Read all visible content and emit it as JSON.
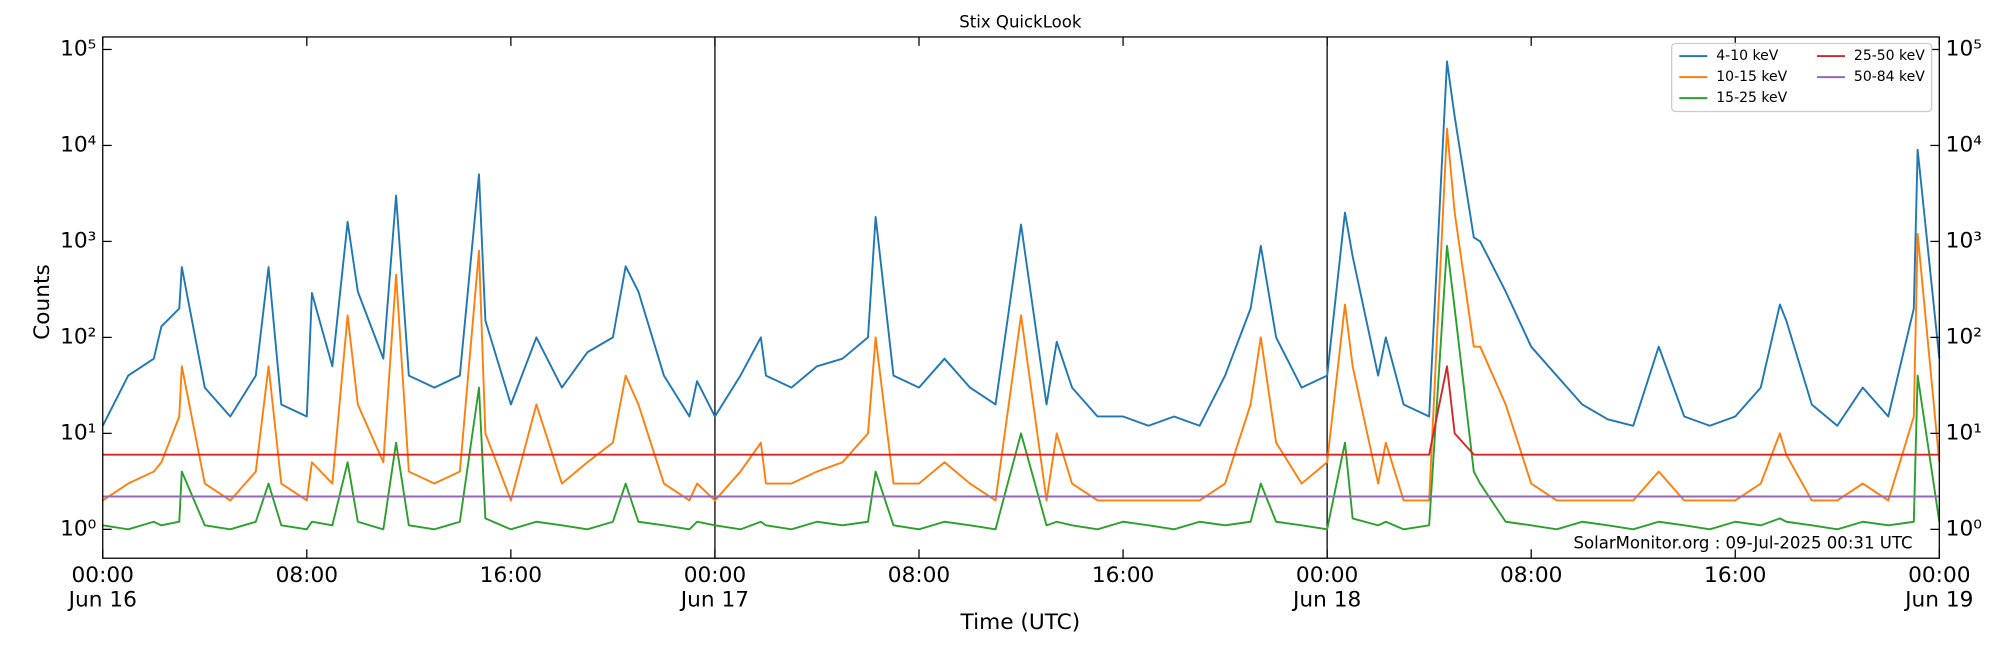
{
  "chart_data": {
    "type": "line",
    "title": "Stix QuickLook",
    "x_label": "Time (UTC)",
    "y_label": "Counts",
    "annotation": "SolarMonitor.org : 09-Jul-2025 00:31 UTC",
    "log_y": true,
    "legend_position": "upper right",
    "legend_columns": 2,
    "xlim": [
      0,
      72
    ],
    "xticks": [
      {
        "value": 0,
        "label": "00:00\nJun 16"
      },
      {
        "value": 8,
        "label": "08:00"
      },
      {
        "value": 16,
        "label": "16:00"
      },
      {
        "value": 24,
        "label": "00:00\nJun 17"
      },
      {
        "value": 32,
        "label": "08:00"
      },
      {
        "value": 40,
        "label": "16:00"
      },
      {
        "value": 48,
        "label": "00:00\nJun 18"
      },
      {
        "value": 56,
        "label": "08:00"
      },
      {
        "value": 64,
        "label": "16:00"
      },
      {
        "value": 72,
        "label": "00:00\nJun 19"
      }
    ],
    "day_lines": [
      24,
      48
    ],
    "ylim": [
      0.5,
      135000
    ],
    "yticks": [
      {
        "value": 1,
        "label": "10⁰"
      },
      {
        "value": 10,
        "label": "10¹"
      },
      {
        "value": 100,
        "label": "10²"
      },
      {
        "value": 1000,
        "label": "10³"
      },
      {
        "value": 10000,
        "label": "10⁴"
      },
      {
        "value": 100000,
        "label": "10⁵"
      }
    ],
    "x": [
      0,
      1,
      2,
      2.3,
      3,
      3.1,
      4,
      5,
      6,
      6.5,
      7,
      8,
      8.2,
      9,
      9.6,
      10,
      11,
      11.5,
      12,
      13,
      14,
      14.75,
      15,
      16,
      17,
      18,
      19,
      20,
      20.5,
      21,
      22,
      23,
      23.3,
      24,
      25,
      25.8,
      26,
      27,
      28,
      29,
      30,
      30.3,
      31,
      32,
      33,
      34,
      35,
      36,
      37,
      37.4,
      38,
      39,
      40,
      41,
      42,
      43,
      44,
      45,
      45.4,
      46,
      47,
      48,
      48.7,
      49,
      50,
      50.3,
      51,
      52,
      52.7,
      53,
      53.75,
      54,
      55,
      56,
      57,
      58,
      59,
      60,
      61,
      62,
      63,
      64,
      65,
      65.75,
      66,
      67,
      68,
      69,
      70,
      71,
      71.15,
      72
    ],
    "series": [
      {
        "name": "4-10 keV",
        "color": "#1f77b4",
        "values": [
          12,
          40,
          60,
          130,
          200,
          540,
          30,
          15,
          40,
          540,
          20,
          15,
          290,
          50,
          1600,
          300,
          60,
          3000,
          40,
          30,
          40,
          5000,
          150,
          20,
          100,
          30,
          70,
          100,
          550,
          300,
          40,
          15,
          35,
          15,
          40,
          100,
          40,
          30,
          50,
          60,
          100,
          1800,
          40,
          30,
          60,
          30,
          20,
          1500,
          20,
          90,
          30,
          15,
          15,
          12,
          15,
          12,
          40,
          200,
          900,
          100,
          30,
          40,
          2000,
          700,
          40,
          100,
          20,
          15,
          75000,
          20000,
          1100,
          1000,
          300,
          80,
          40,
          20,
          14,
          12,
          80,
          15,
          12,
          15,
          30,
          220,
          150,
          20,
          12,
          30,
          15,
          200,
          9000,
          60
        ]
      },
      {
        "name": "10-15 keV",
        "color": "#ff7f0e",
        "values": [
          2,
          3,
          4,
          5,
          15,
          50,
          3,
          2,
          4,
          50,
          3,
          2,
          5,
          3,
          170,
          20,
          5,
          450,
          4,
          3,
          4,
          800,
          10,
          2,
          20,
          3,
          5,
          8,
          40,
          20,
          3,
          2,
          3,
          2,
          4,
          8,
          3,
          3,
          4,
          5,
          10,
          100,
          3,
          3,
          5,
          3,
          2,
          170,
          2,
          10,
          3,
          2,
          2,
          2,
          2,
          2,
          3,
          20,
          100,
          8,
          3,
          5,
          220,
          50,
          3,
          8,
          2,
          2,
          15000,
          2000,
          80,
          80,
          20,
          3,
          2,
          2,
          2,
          2,
          4,
          2,
          2,
          2,
          3,
          10,
          6,
          2,
          2,
          3,
          2,
          15,
          1200,
          5
        ]
      },
      {
        "name": "15-25 keV",
        "color": "#2ca02c",
        "values": [
          1.1,
          1.0,
          1.2,
          1.1,
          1.2,
          4,
          1.1,
          1.0,
          1.2,
          3,
          1.1,
          1.0,
          1.2,
          1.1,
          5,
          1.2,
          1.0,
          8,
          1.1,
          1.0,
          1.2,
          30,
          1.3,
          1.0,
          1.2,
          1.1,
          1.0,
          1.2,
          3,
          1.2,
          1.1,
          1.0,
          1.2,
          1.1,
          1.0,
          1.2,
          1.1,
          1.0,
          1.2,
          1.1,
          1.2,
          4,
          1.1,
          1.0,
          1.2,
          1.1,
          1.0,
          10,
          1.1,
          1.2,
          1.1,
          1.0,
          1.2,
          1.1,
          1.0,
          1.2,
          1.1,
          1.2,
          3,
          1.2,
          1.1,
          1.0,
          8,
          1.3,
          1.1,
          1.2,
          1.0,
          1.1,
          900,
          200,
          4,
          3,
          1.2,
          1.1,
          1.0,
          1.2,
          1.1,
          1.0,
          1.2,
          1.1,
          1.0,
          1.2,
          1.1,
          1.3,
          1.2,
          1.1,
          1.0,
          1.2,
          1.1,
          1.2,
          40,
          1.2
        ]
      },
      {
        "name": "25-50 keV",
        "color": "#d62728",
        "values": [
          6,
          6,
          6,
          6,
          6,
          6,
          6,
          6,
          6,
          6,
          6,
          6,
          6,
          6,
          6,
          6,
          6,
          6,
          6,
          6,
          6,
          6,
          6,
          6,
          6,
          6,
          6,
          6,
          6,
          6,
          6,
          6,
          6,
          6,
          6,
          6,
          6,
          6,
          6,
          6,
          6,
          6,
          6,
          6,
          6,
          6,
          6,
          6,
          6,
          6,
          6,
          6,
          6,
          6,
          6,
          6,
          6,
          6,
          6,
          6,
          6,
          6,
          6,
          6,
          6,
          6,
          6,
          6,
          50,
          10,
          6,
          6,
          6,
          6,
          6,
          6,
          6,
          6,
          6,
          6,
          6,
          6,
          6,
          6,
          6,
          6,
          6,
          6,
          6,
          6,
          6,
          6
        ]
      },
      {
        "name": "50-84 keV",
        "color": "#9467bd",
        "values": [
          2.2,
          2.2,
          2.2,
          2.2,
          2.2,
          2.2,
          2.2,
          2.2,
          2.2,
          2.2,
          2.2,
          2.2,
          2.2,
          2.2,
          2.2,
          2.2,
          2.2,
          2.2,
          2.2,
          2.2,
          2.2,
          2.2,
          2.2,
          2.2,
          2.2,
          2.2,
          2.2,
          2.2,
          2.2,
          2.2,
          2.2,
          2.2,
          2.2,
          2.2,
          2.2,
          2.2,
          2.2,
          2.2,
          2.2,
          2.2,
          2.2,
          2.2,
          2.2,
          2.2,
          2.2,
          2.2,
          2.2,
          2.2,
          2.2,
          2.2,
          2.2,
          2.2,
          2.2,
          2.2,
          2.2,
          2.2,
          2.2,
          2.2,
          2.2,
          2.2,
          2.2,
          2.2,
          2.2,
          2.2,
          2.2,
          2.2,
          2.2,
          2.2,
          2.2,
          2.2,
          2.2,
          2.2,
          2.2,
          2.2,
          2.2,
          2.2,
          2.2,
          2.2,
          2.2,
          2.2,
          2.2,
          2.2,
          2.2,
          2.2,
          2.2,
          2.2,
          2.2,
          2.2,
          2.2,
          2.2,
          2.2,
          2.2
        ]
      }
    ]
  }
}
